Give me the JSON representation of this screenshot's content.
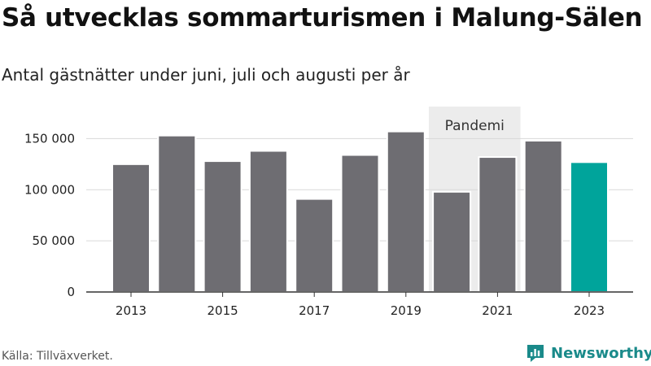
{
  "header": {
    "title": "Så utvecklas sommarturismen i Malung-Sälen",
    "subtitle": "Antal gästnätter under juni, juli och augusti per år"
  },
  "footer": {
    "source": "Källa: Tillväxverket.",
    "brand": "Newsworthy",
    "brand_icon": "newsworthy-logo-icon"
  },
  "colors": {
    "bar": "#6e6d72",
    "highlight": "#00a49b",
    "shade": "#ececec",
    "grid": "#d9d9d9",
    "axis": "#333333",
    "brand": "#1a8a8a"
  },
  "chart_data": {
    "type": "bar",
    "title": "Så utvecklas sommarturismen i Malung-Sälen",
    "subtitle": "Antal gästnätter under juni, juli och augusti per år",
    "x": [
      2013,
      2014,
      2015,
      2016,
      2017,
      2018,
      2019,
      2020,
      2021,
      2022,
      2023
    ],
    "values": [
      125000,
      153000,
      128000,
      138000,
      91000,
      134000,
      157000,
      98000,
      132000,
      148000,
      127000
    ],
    "highlight": 2023,
    "ylim": [
      0,
      175000
    ],
    "yticks": [
      0,
      50000,
      100000,
      150000
    ],
    "ytick_labels": [
      "0",
      "50 000",
      "100 000",
      "150 000"
    ],
    "xtick_labels": [
      "2013",
      "2015",
      "2017",
      "2019",
      "2021",
      "2023"
    ],
    "grid": true,
    "annotations": [
      {
        "label": "Pandemi",
        "from": 2020,
        "to": 2021
      }
    ]
  }
}
